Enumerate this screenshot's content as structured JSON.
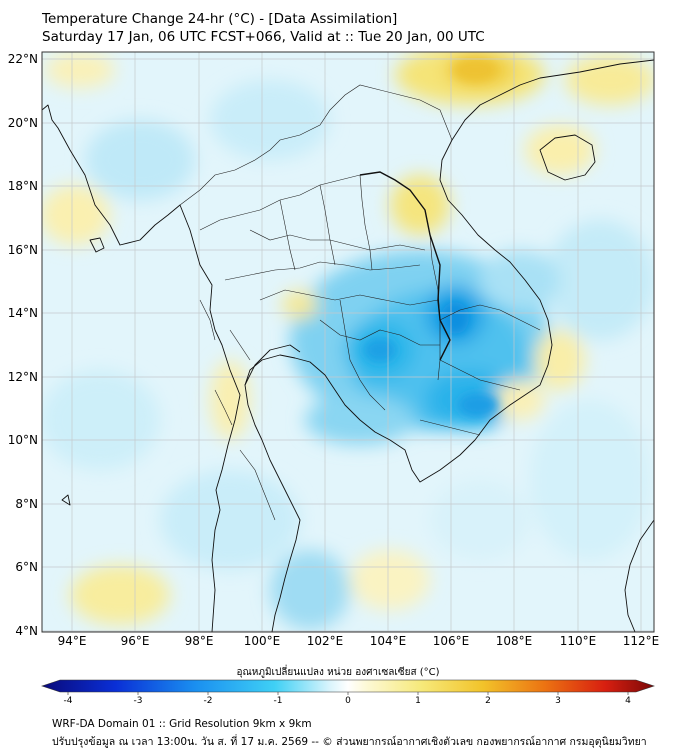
{
  "header": {
    "title_line1": "Temperature Change 24-hr (°C) - [Data Assimilation]",
    "title_line2": "Saturday 17 Jan, 06 UTC FCST+066, Valid at :: Tue 20 Jan, 00 UTC"
  },
  "map": {
    "lat_labels": [
      "22°N",
      "20°N",
      "18°N",
      "16°N",
      "14°N",
      "12°N",
      "10°N",
      "8°N",
      "6°N",
      "4°N"
    ],
    "lon_labels": [
      "94°E",
      "96°E",
      "98°E",
      "100°E",
      "102°E",
      "104°E",
      "106°E",
      "108°E",
      "110°E",
      "112°E"
    ],
    "colors": {
      "cool": "#2bb6ea",
      "deep_cool": "#0c8fe0",
      "warm": "#f5e477",
      "deep_warm": "#f0c832"
    }
  },
  "colorbar": {
    "label": "อุณหภูมิเปลี่ยนแปลง หน่วย องศาเซลเซียส (°C)",
    "ticks": [
      "-4",
      "-3",
      "-2",
      "-1",
      "0",
      "1",
      "2",
      "3",
      "4"
    ],
    "range": [
      -4,
      4
    ]
  },
  "footer": {
    "line1": "WRF-DA Domain 01 :: Grid Resolution 9km x 9km",
    "line2": "ปรับปรุงข้อมูล ณ เวลา 13:00น. วัน ส. ที่ 17 ม.ค. 2569 -- © ส่วนพยากรณ์อากาศเชิงตัวเลข กองพยากรณ์อากาศ กรมอุตุนิยมวิทยา"
  }
}
